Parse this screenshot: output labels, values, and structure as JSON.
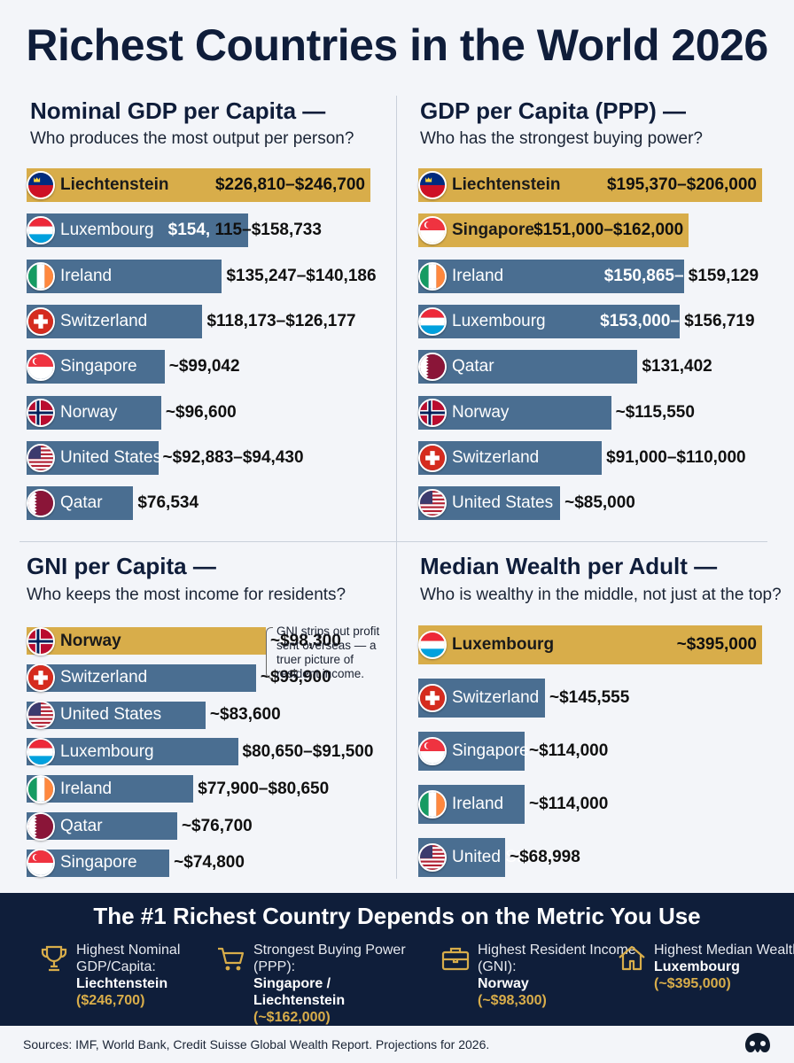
{
  "title": "Richest Countries in the World 2026",
  "colors": {
    "top": "#d8ad4a",
    "regular": "#4a6e91",
    "footer_bg": "#0f1e3a",
    "accent": "#d8ad4a"
  },
  "panels": [
    {
      "title": "Nominal GDP per Capita —",
      "subtitle": "Who produces the most output per person?"
    },
    {
      "title": "GDP per Capita (PPP) —",
      "subtitle": "Who has the strongest buying power?"
    },
    {
      "title": "GNI per Capita —",
      "subtitle": "Who keeps the most income for residents?"
    },
    {
      "title": "Median Wealth per Adult —",
      "subtitle": "Who is wealthy in the middle, not just at the top?"
    }
  ],
  "chart_data": [
    {
      "type": "bar",
      "title": "Nominal GDP per Capita —",
      "categories": [
        "Liechtenstein",
        "Luxembourg",
        "Ireland",
        "Switzerland",
        "Singapore",
        "Norway",
        "United States",
        "Qatar"
      ],
      "values": [
        246700,
        158733,
        140186,
        126177,
        99042,
        96600,
        94430,
        76534
      ],
      "value_labels": [
        "$226,810–$246,700",
        "$154, 115–$158,733",
        "$135,247–$140,186",
        "$118,173–$126,177",
        "~$99,042",
        "~$96,600",
        "~$92,883–$94,430",
        "$76,534"
      ],
      "flags": [
        "flag-liechtenstein",
        "flag-luxembourg",
        "flag-ireland",
        "flag-switzerland",
        "flag-singapore",
        "flag-norway",
        "flag-united-states",
        "flag-qatar"
      ],
      "highlight": [
        0
      ]
    },
    {
      "type": "bar",
      "title": "GDP per Capita (PPP) —",
      "categories": [
        "Liechtenstein",
        "Singapore",
        "Ireland",
        "Luxembourg",
        "Qatar",
        "Norway",
        "Switzerland",
        "United States"
      ],
      "values": [
        206000,
        162000,
        159129,
        156719,
        131402,
        115550,
        110000,
        85000
      ],
      "value_labels": [
        "$195,370–$206,000",
        "$151,000–$162,000",
        "$150,865– $159,129",
        "$153,000– $156,719",
        "$131,402",
        "~$115,550",
        "$91,000–$110,000",
        "~$85,000"
      ],
      "flags": [
        "flag-liechtenstein",
        "flag-singapore",
        "flag-ireland",
        "flag-luxembourg",
        "flag-qatar",
        "flag-norway",
        "flag-switzerland",
        "flag-united-states"
      ],
      "highlight": [
        0,
        1
      ]
    },
    {
      "type": "bar",
      "title": "GNI per Capita —",
      "categories": [
        "Norway",
        "Switzerland",
        "United States",
        "Luxembourg",
        "Ireland",
        "Qatar",
        "Singapore"
      ],
      "values": [
        98300,
        95900,
        83600,
        91500,
        80650,
        76700,
        74800
      ],
      "value_labels": [
        "~$98,300",
        "~$95,900",
        "~$83,600",
        "$80,650–$91,500",
        "$77,900–$80,650",
        "~$76,700",
        "~$74,800"
      ],
      "flags": [
        "flag-norway",
        "flag-switzerland",
        "flag-united-states",
        "flag-luxembourg",
        "flag-ireland",
        "flag-qatar",
        "flag-singapore"
      ],
      "highlight": [
        0
      ]
    },
    {
      "type": "bar",
      "title": "Median Wealth per Adult —",
      "categories": [
        "Luxembourg",
        "Switzerland",
        "Singapore",
        "Ireland",
        "United States"
      ],
      "values": [
        395000,
        145555,
        114000,
        114000,
        68998
      ],
      "value_labels": [
        "~$395,000",
        "~$145,555",
        "~$114,000",
        "~$114,000",
        "~$68,998"
      ],
      "flags": [
        "flag-luxembourg",
        "flag-switzerland",
        "flag-singapore",
        "flag-ireland",
        "flag-united-states"
      ],
      "highlight": [
        0
      ]
    }
  ],
  "gni_note": "GNI strips out profit sent overseas — a truer picture of resident income.",
  "footer": {
    "title": "The #1 Richest Country Depends on the Metric You Use",
    "items": [
      {
        "icon": "trophy-icon",
        "metric": "Highest Nominal GDP/Capita:",
        "winner": "Liechtenstein",
        "amount": "($246,700)"
      },
      {
        "icon": "shopping-cart-icon",
        "metric": "Strongest Buying Power (PPP):",
        "winner": "Singapore / Liechtenstein",
        "amount": "(~$162,000)"
      },
      {
        "icon": "briefcase-icon",
        "metric": "Highest Resident Income (GNI):",
        "winner": "Norway",
        "amount": "(~$98,300)"
      },
      {
        "icon": "house-icon",
        "metric": "Highest Median Wealth:",
        "winner": "Luxembourg",
        "amount": "(~$395,000)"
      }
    ]
  },
  "sources": "Sources: IMF, World Bank, Credit Suisse Global Wealth Report. Projections for 2026.",
  "logo": "brand-logo-icon"
}
